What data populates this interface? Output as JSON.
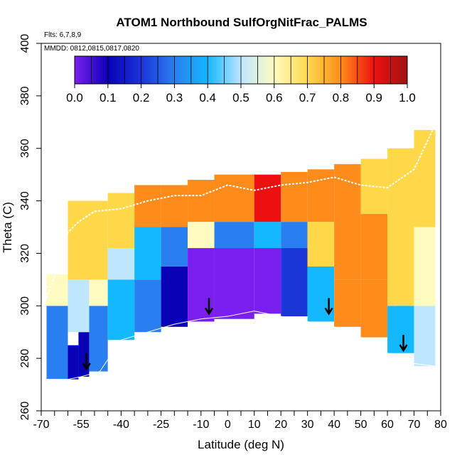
{
  "chart_data": {
    "type": "heatmap",
    "title": "ATOM1 Northbound SulfOrgNitFrac_PALMS",
    "flights_note": "Flts: 6,7,8,9",
    "dates_note": "MMDD: 0812,0815,0817,0820",
    "xlabel": "Latitude (deg N)",
    "ylabel": "Theta (C)",
    "xlim": [
      -70,
      80
    ],
    "ylim": [
      260,
      400
    ],
    "x_tick_labels": [
      "-70",
      "-55",
      "-40",
      "-25",
      "-10",
      "0",
      "10",
      "20",
      "30",
      "40",
      "50",
      "60",
      "70",
      "80"
    ],
    "x_tick_values": [
      -70,
      -55,
      -40,
      -25,
      -10,
      0,
      10,
      20,
      30,
      40,
      50,
      60,
      70,
      80
    ],
    "y_tick_labels": [
      "260",
      "280",
      "300",
      "320",
      "340",
      "360",
      "380",
      "400"
    ],
    "y_tick_values": [
      260,
      280,
      300,
      320,
      340,
      360,
      380,
      400
    ],
    "colorbar": {
      "labels": [
        "0.0",
        "0.1",
        "0.2",
        "0.3",
        "0.4",
        "0.5",
        "0.6",
        "0.7",
        "0.8",
        "0.9",
        "1.0"
      ],
      "values": [
        0.0,
        0.1,
        0.2,
        0.3,
        0.4,
        0.5,
        0.6,
        0.7,
        0.8,
        0.9,
        1.0
      ],
      "colors": [
        "#7a1ff0",
        "#0a00b8",
        "#1a35d8",
        "#2a7ff0",
        "#14b8ff",
        "#bfe6ff",
        "#fffbc0",
        "#ffd84a",
        "#ff8c1a",
        "#ee1010",
        "#a01414"
      ]
    },
    "tropopause_profile": [
      [
        -68,
        303
      ],
      [
        -64,
        314
      ],
      [
        -60,
        328
      ],
      [
        -56,
        332
      ],
      [
        -50,
        336
      ],
      [
        -40,
        337
      ],
      [
        -30,
        340
      ],
      [
        -20,
        342
      ],
      [
        -10,
        342
      ],
      [
        0,
        346
      ],
      [
        10,
        344
      ],
      [
        20,
        346
      ],
      [
        30,
        347
      ],
      [
        40,
        349
      ],
      [
        50,
        346
      ],
      [
        60,
        345
      ],
      [
        70,
        352
      ],
      [
        77,
        367
      ]
    ],
    "lower_boundary": [
      [
        -68,
        272
      ],
      [
        -60,
        272
      ],
      [
        -55,
        273
      ],
      [
        -48,
        275
      ],
      [
        -40,
        287
      ],
      [
        -30,
        290
      ],
      [
        -20,
        293
      ],
      [
        -10,
        295
      ],
      [
        0,
        296
      ],
      [
        10,
        298
      ],
      [
        20,
        296
      ],
      [
        30,
        294
      ],
      [
        40,
        292
      ],
      [
        50,
        288
      ],
      [
        60,
        282
      ],
      [
        70,
        278
      ],
      [
        78,
        277
      ]
    ],
    "sonde_arrows": [
      {
        "lat": -53,
        "theta": 276
      },
      {
        "lat": -7,
        "theta": 297
      },
      {
        "lat": 38,
        "theta": 297
      },
      {
        "lat": 66,
        "theta": 283
      }
    ],
    "cells": [
      {
        "x0": -68,
        "x1": -60,
        "y0": 272,
        "y1": 300,
        "v": 0.35
      },
      {
        "x0": -60,
        "x1": -56,
        "y0": 272,
        "y1": 285,
        "v": 0.1
      },
      {
        "x0": -56,
        "x1": -52,
        "y0": 273,
        "y1": 290,
        "v": 0.15
      },
      {
        "x0": -52,
        "x1": -45,
        "y0": 275,
        "y1": 300,
        "v": 0.3
      },
      {
        "x0": -68,
        "x1": -60,
        "y0": 300,
        "y1": 312,
        "v": 0.6
      },
      {
        "x0": -60,
        "x1": -52,
        "y0": 290,
        "y1": 310,
        "v": 0.5
      },
      {
        "x0": -52,
        "x1": -45,
        "y0": 300,
        "y1": 318,
        "v": 0.65
      },
      {
        "x0": -60,
        "x1": -45,
        "y0": 310,
        "y1": 340,
        "v": 0.75
      },
      {
        "x0": -45,
        "x1": -35,
        "y0": 287,
        "y1": 310,
        "v": 0.45
      },
      {
        "x0": -45,
        "x1": -35,
        "y0": 310,
        "y1": 322,
        "v": 0.55
      },
      {
        "x0": -45,
        "x1": -35,
        "y0": 322,
        "y1": 343,
        "v": 0.78
      },
      {
        "x0": -35,
        "x1": -25,
        "y0": 290,
        "y1": 310,
        "v": 0.3
      },
      {
        "x0": -35,
        "x1": -25,
        "y0": 310,
        "y1": 330,
        "v": 0.4
      },
      {
        "x0": -35,
        "x1": -25,
        "y0": 330,
        "y1": 346,
        "v": 0.82
      },
      {
        "x0": -25,
        "x1": -15,
        "y0": 292,
        "y1": 315,
        "v": 0.15
      },
      {
        "x0": -25,
        "x1": -15,
        "y0": 315,
        "y1": 330,
        "v": 0.3
      },
      {
        "x0": -25,
        "x1": -15,
        "y0": 330,
        "y1": 346,
        "v": 0.85
      },
      {
        "x0": -15,
        "x1": -5,
        "y0": 294,
        "y1": 322,
        "v": 0.08
      },
      {
        "x0": -15,
        "x1": -5,
        "y0": 322,
        "y1": 332,
        "v": 0.6
      },
      {
        "x0": -15,
        "x1": -5,
        "y0": 332,
        "y1": 348,
        "v": 0.88
      },
      {
        "x0": -5,
        "x1": 10,
        "y0": 295,
        "y1": 322,
        "v": 0.02
      },
      {
        "x0": -5,
        "x1": 10,
        "y0": 322,
        "y1": 332,
        "v": 0.35
      },
      {
        "x0": -5,
        "x1": 10,
        "y0": 332,
        "y1": 350,
        "v": 0.86
      },
      {
        "x0": 10,
        "x1": 20,
        "y0": 297,
        "y1": 322,
        "v": 0.05
      },
      {
        "x0": 10,
        "x1": 20,
        "y0": 322,
        "y1": 332,
        "v": 0.45
      },
      {
        "x0": 10,
        "x1": 20,
        "y0": 332,
        "y1": 350,
        "v": 0.9
      },
      {
        "x0": 20,
        "x1": 30,
        "y0": 296,
        "y1": 322,
        "v": 0.22
      },
      {
        "x0": 20,
        "x1": 30,
        "y0": 322,
        "y1": 332,
        "v": 0.3
      },
      {
        "x0": 20,
        "x1": 30,
        "y0": 332,
        "y1": 351,
        "v": 0.85
      },
      {
        "x0": 30,
        "x1": 40,
        "y0": 294,
        "y1": 315,
        "v": 0.45
      },
      {
        "x0": 30,
        "x1": 40,
        "y0": 315,
        "y1": 332,
        "v": 0.7
      },
      {
        "x0": 30,
        "x1": 40,
        "y0": 332,
        "y1": 352,
        "v": 0.82
      },
      {
        "x0": 40,
        "x1": 50,
        "y0": 292,
        "y1": 310,
        "v": 0.8
      },
      {
        "x0": 40,
        "x1": 50,
        "y0": 310,
        "y1": 330,
        "v": 0.88
      },
      {
        "x0": 40,
        "x1": 50,
        "y0": 330,
        "y1": 354,
        "v": 0.82
      },
      {
        "x0": 50,
        "x1": 60,
        "y0": 288,
        "y1": 310,
        "v": 0.86
      },
      {
        "x0": 50,
        "x1": 60,
        "y0": 310,
        "y1": 335,
        "v": 0.8
      },
      {
        "x0": 50,
        "x1": 60,
        "y0": 335,
        "y1": 356,
        "v": 0.72
      },
      {
        "x0": 60,
        "x1": 70,
        "y0": 282,
        "y1": 300,
        "v": 0.45
      },
      {
        "x0": 60,
        "x1": 70,
        "y0": 300,
        "y1": 330,
        "v": 0.7
      },
      {
        "x0": 60,
        "x1": 70,
        "y0": 330,
        "y1": 360,
        "v": 0.7
      },
      {
        "x0": 70,
        "x1": 78,
        "y0": 277,
        "y1": 300,
        "v": 0.5
      },
      {
        "x0": 70,
        "x1": 78,
        "y0": 300,
        "y1": 330,
        "v": 0.65
      },
      {
        "x0": 70,
        "x1": 78,
        "y0": 330,
        "y1": 367,
        "v": 0.7
      }
    ]
  }
}
